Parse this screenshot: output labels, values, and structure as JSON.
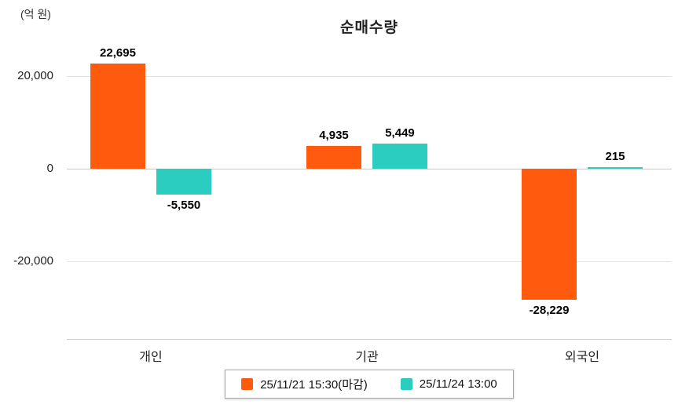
{
  "chart_data": {
    "type": "bar",
    "title": "순매수량",
    "unit": "(억 원)",
    "categories": [
      "개인",
      "기관",
      "외국인"
    ],
    "series": [
      {
        "name": "25/11/21 15:30(마감)",
        "color": "#FF5A0E",
        "values": [
          22695,
          4935,
          -28229
        ],
        "labels": [
          "22,695",
          "4,935",
          "-28,229"
        ]
      },
      {
        "name": "25/11/24 13:00",
        "color": "#2BCDC1",
        "values": [
          -5550,
          5449,
          215
        ],
        "labels": [
          "-5,550",
          "5,449",
          "215"
        ]
      }
    ],
    "y_ticks": [
      {
        "label": "20,000",
        "value": 20000
      },
      {
        "label": "0",
        "value": 0
      },
      {
        "label": "-20,000",
        "value": -20000
      }
    ],
    "ylim": [
      -32000,
      26000
    ],
    "grid": true,
    "legend_position": "bottom"
  }
}
